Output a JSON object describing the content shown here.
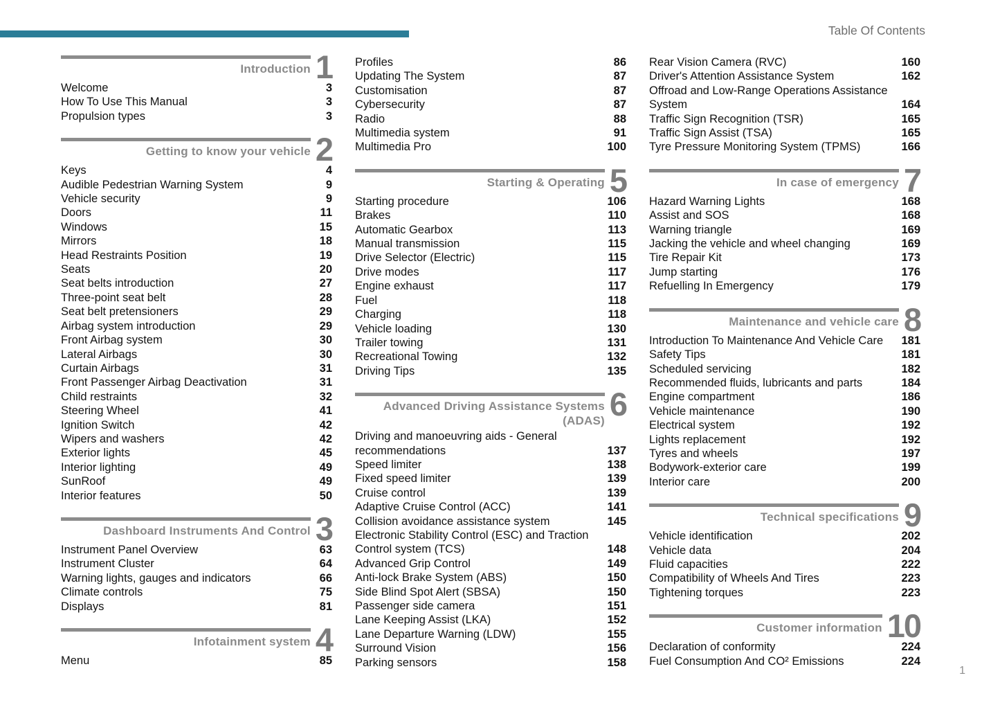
{
  "header": {
    "title": "Table Of Contents"
  },
  "footer": {
    "page_number": "1"
  },
  "colors": {
    "accent": "#2b7d97",
    "section_title_gray": "#8a8a8a",
    "section_number_gray": "#7d7d7d"
  },
  "columns": [
    {
      "blocks": [
        {
          "section_number": "1",
          "section_title": "Introduction",
          "entries": [
            {
              "label": "Welcome",
              "page": "3"
            },
            {
              "label": "How To Use This Manual",
              "page": "3"
            },
            {
              "label": "Propulsion types",
              "page": "3"
            }
          ]
        },
        {
          "section_number": "2",
          "section_title": "Getting to know your vehicle",
          "entries": [
            {
              "label": "Keys",
              "page": "4"
            },
            {
              "label": "Audible Pedestrian Warning System",
              "page": "9"
            },
            {
              "label": "Vehicle security",
              "page": "9"
            },
            {
              "label": "Doors",
              "page": "11"
            },
            {
              "label": "Windows",
              "page": "15"
            },
            {
              "label": "Mirrors",
              "page": "18"
            },
            {
              "label": "Head Restraints Position",
              "page": "19"
            },
            {
              "label": "Seats",
              "page": "20"
            },
            {
              "label": "Seat belts introduction",
              "page": "27"
            },
            {
              "label": "Three-point seat belt",
              "page": "28"
            },
            {
              "label": "Seat belt pretensioners",
              "page": "29"
            },
            {
              "label": "Airbag system introduction",
              "page": "29"
            },
            {
              "label": "Front Airbag system",
              "page": "30"
            },
            {
              "label": "Lateral Airbags",
              "page": "30"
            },
            {
              "label": "Curtain Airbags",
              "page": "31"
            },
            {
              "label": "Front Passenger Airbag Deactivation",
              "page": "31"
            },
            {
              "label": "Child restraints",
              "page": "32"
            },
            {
              "label": "Steering Wheel",
              "page": "41"
            },
            {
              "label": "Ignition Switch",
              "page": "42"
            },
            {
              "label": "Wipers and washers",
              "page": "42"
            },
            {
              "label": "Exterior lights",
              "page": "45"
            },
            {
              "label": "Interior lighting",
              "page": "49"
            },
            {
              "label": "SunRoof",
              "page": "49"
            },
            {
              "label": "Interior features",
              "page": "50"
            }
          ]
        },
        {
          "section_number": "3",
          "section_title": "Dashboard Instruments And Control",
          "entries": [
            {
              "label": "Instrument Panel Overview",
              "page": "63"
            },
            {
              "label": "Instrument Cluster",
              "page": "64"
            },
            {
              "label": "Warning lights, gauges and indicators",
              "page": "66"
            },
            {
              "label": "Climate controls",
              "page": "75"
            },
            {
              "label": "Displays",
              "page": "81"
            }
          ]
        },
        {
          "section_number": "4",
          "section_title": "Infotainment system",
          "entries": [
            {
              "label": "Menu",
              "page": "85"
            }
          ]
        }
      ]
    },
    {
      "blocks": [
        {
          "entries": [
            {
              "label": "Profiles",
              "page": "86"
            },
            {
              "label": "Updating The System",
              "page": "87"
            },
            {
              "label": "Customisation",
              "page": "87"
            },
            {
              "label": "Cybersecurity",
              "page": "87"
            },
            {
              "label": "Radio",
              "page": "88"
            },
            {
              "label": "Multimedia system",
              "page": "91"
            },
            {
              "label": "Multimedia Pro",
              "page": "100"
            }
          ]
        },
        {
          "section_number": "5",
          "section_title": "Starting & Operating",
          "entries": [
            {
              "label": "Starting procedure",
              "page": "106"
            },
            {
              "label": "Brakes",
              "page": "110"
            },
            {
              "label": "Automatic Gearbox",
              "page": "113"
            },
            {
              "label": "Manual transmission",
              "page": "115"
            },
            {
              "label": "Drive Selector (Electric)",
              "page": "115"
            },
            {
              "label": "Drive modes",
              "page": "117"
            },
            {
              "label": "Engine exhaust",
              "page": "117"
            },
            {
              "label": "Fuel",
              "page": "118"
            },
            {
              "label": "Charging",
              "page": "118"
            },
            {
              "label": "Vehicle loading",
              "page": "130"
            },
            {
              "label": "Trailer towing",
              "page": "131"
            },
            {
              "label": "Recreational Towing",
              "page": "132"
            },
            {
              "label": "Driving Tips",
              "page": "135"
            }
          ]
        },
        {
          "section_number": "6",
          "section_title": "Advanced Driving Assistance Systems",
          "section_title_line2": "(ADAS)",
          "entries": [
            {
              "label": "Driving and manoeuvring aids - General recommendations",
              "page": "137"
            },
            {
              "label": "Speed limiter",
              "page": "138"
            },
            {
              "label": "Fixed speed limiter",
              "page": "139"
            },
            {
              "label": "Cruise control",
              "page": "139"
            },
            {
              "label": "Adaptive Cruise Control (ACC)",
              "page": "141"
            },
            {
              "label": "Collision avoidance assistance system",
              "page": "145"
            },
            {
              "label": "Electronic Stability Control (ESC) and Traction Control system (TCS)",
              "page": "148"
            },
            {
              "label": "Advanced Grip Control",
              "page": "149"
            },
            {
              "label": "Anti-lock Brake System (ABS)",
              "page": "150"
            },
            {
              "label": "Side Blind Spot Alert (SBSA)",
              "page": "150"
            },
            {
              "label": "Passenger side camera",
              "page": "151"
            },
            {
              "label": "Lane Keeping Assist (LKA)",
              "page": "152"
            },
            {
              "label": "Lane Departure Warning (LDW)",
              "page": "155"
            },
            {
              "label": "Surround Vision",
              "page": "156"
            },
            {
              "label": "Parking sensors",
              "page": "158"
            }
          ]
        }
      ]
    },
    {
      "blocks": [
        {
          "entries": [
            {
              "label": "Rear Vision Camera (RVC)",
              "page": "160"
            },
            {
              "label": "Driver's Attention Assistance System",
              "page": "162"
            },
            {
              "label": "Offroad and Low-Range Operations Assistance System",
              "page": "164"
            },
            {
              "label": "Traffic Sign Recognition (TSR)",
              "page": "165"
            },
            {
              "label": "Traffic Sign Assist (TSA)",
              "page": "165"
            },
            {
              "label": "Tyre Pressure Monitoring System (TPMS)",
              "page": "166"
            }
          ]
        },
        {
          "section_number": "7",
          "section_title": "In case of emergency",
          "entries": [
            {
              "label": "Hazard Warning Lights",
              "page": "168"
            },
            {
              "label": "Assist and SOS",
              "page": "168"
            },
            {
              "label": "Warning triangle",
              "page": "169"
            },
            {
              "label": "Jacking the vehicle and wheel changing",
              "page": "169"
            },
            {
              "label": "Tire Repair Kit",
              "page": "173"
            },
            {
              "label": "Jump starting",
              "page": "176"
            },
            {
              "label": "Refuelling In Emergency",
              "page": "179"
            }
          ]
        },
        {
          "section_number": "8",
          "section_title": "Maintenance and vehicle care",
          "entries": [
            {
              "label": "Introduction To Maintenance And Vehicle Care",
              "page": "181"
            },
            {
              "label": "Safety Tips",
              "page": "181"
            },
            {
              "label": "Scheduled servicing",
              "page": "182"
            },
            {
              "label": "Recommended fluids, lubricants and parts",
              "page": "184"
            },
            {
              "label": "Engine compartment",
              "page": "186"
            },
            {
              "label": "Vehicle maintenance",
              "page": "190"
            },
            {
              "label": "Electrical system",
              "page": "192"
            },
            {
              "label": "Lights replacement",
              "page": "192"
            },
            {
              "label": "Tyres and wheels",
              "page": "197"
            },
            {
              "label": "Bodywork-exterior care",
              "page": "199"
            },
            {
              "label": "Interior care",
              "page": "200"
            }
          ]
        },
        {
          "section_number": "9",
          "section_title": "Technical specifications",
          "entries": [
            {
              "label": "Vehicle identification",
              "page": "202"
            },
            {
              "label": "Vehicle data",
              "page": "204"
            },
            {
              "label": "Fluid capacities",
              "page": "222"
            },
            {
              "label": "Compatibility of Wheels And Tires",
              "page": "223"
            },
            {
              "label": "Tightening torques",
              "page": "223"
            }
          ]
        },
        {
          "section_number": "10",
          "section_title": "Customer information",
          "entries": [
            {
              "label": "Declaration of conformity",
              "page": "224"
            },
            {
              "label": "Fuel Consumption And CO² Emissions",
              "page": "224"
            }
          ]
        }
      ]
    }
  ]
}
